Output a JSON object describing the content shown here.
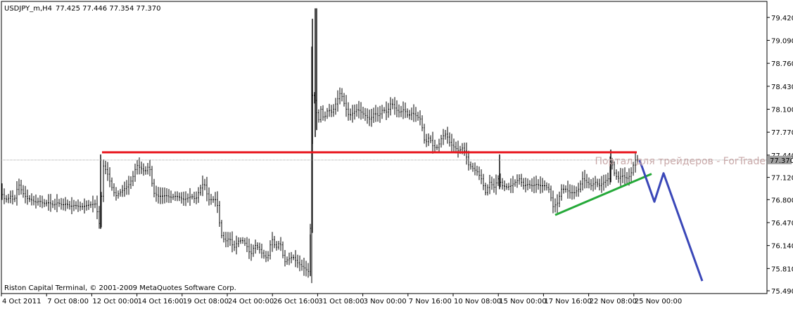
{
  "header": {
    "symbol_timeframe": "USDJPY_m,H4",
    "ohlc": "77.425 77.446 77.354 77.370"
  },
  "footer": {
    "copyright": "Riston Capital Terminal, © 2001-2009 MetaQuotes Software Corp."
  },
  "watermark": "Портал для трейдеров - ForTrade",
  "colors": {
    "background": "#ffffff",
    "candle": "#000000",
    "resistance": "#e8161e",
    "support": "#25a939",
    "forecast": "#3a47b8",
    "bid_line": "#a0a0a0"
  },
  "chart_data": {
    "type": "candlestick",
    "y_axis": {
      "ticks": [
        "79.420",
        "79.090",
        "78.760",
        "78.430",
        "78.100",
        "77.770",
        "77.440",
        "77.120",
        "76.800",
        "76.470",
        "76.140",
        "75.810",
        "75.490"
      ],
      "range": [
        75.45,
        79.65
      ]
    },
    "x_axis": {
      "ticks": [
        "4 Oct 2011",
        "7 Oct 08:00",
        "12 Oct 00:00",
        "14 Oct 16:00",
        "19 Oct 08:00",
        "24 Oct 00:00",
        "26 Oct 16:00",
        "31 Oct 08:00",
        "3 Nov 00:00",
        "7 Nov 16:00",
        "10 Nov 08:00",
        "15 Nov 00:00",
        "17 Nov 16:00",
        "22 Nov 08:00",
        "25 Nov 00:00"
      ]
    },
    "current_price": "77.370",
    "price_path": [
      [
        0,
        76.95
      ],
      [
        5,
        76.82
      ],
      [
        10,
        76.8
      ],
      [
        15,
        76.85
      ],
      [
        20,
        76.78
      ],
      [
        26,
        77.03
      ],
      [
        32,
        76.9
      ],
      [
        38,
        76.82
      ],
      [
        44,
        76.8
      ],
      [
        50,
        76.76
      ],
      [
        56,
        76.78
      ],
      [
        62,
        76.74
      ],
      [
        68,
        76.76
      ],
      [
        76,
        76.72
      ],
      [
        82,
        76.76
      ],
      [
        88,
        76.72
      ],
      [
        94,
        76.74
      ],
      [
        100,
        76.7
      ],
      [
        106,
        76.72
      ],
      [
        112,
        76.7
      ],
      [
        118,
        76.7
      ],
      [
        124,
        76.72
      ],
      [
        130,
        76.73
      ],
      [
        136,
        76.74
      ],
      [
        142,
        76.4
      ],
      [
        146,
        77.3
      ],
      [
        152,
        77.2
      ],
      [
        158,
        77.0
      ],
      [
        164,
        76.85
      ],
      [
        170,
        76.9
      ],
      [
        176,
        76.95
      ],
      [
        182,
        77.0
      ],
      [
        188,
        77.1
      ],
      [
        194,
        77.3
      ],
      [
        200,
        77.25
      ],
      [
        206,
        77.2
      ],
      [
        212,
        77.3
      ],
      [
        218,
        76.9
      ],
      [
        224,
        76.85
      ],
      [
        230,
        76.85
      ],
      [
        236,
        76.86
      ],
      [
        242,
        76.83
      ],
      [
        248,
        76.85
      ],
      [
        254,
        76.84
      ],
      [
        260,
        76.8
      ],
      [
        266,
        76.82
      ],
      [
        272,
        76.85
      ],
      [
        278,
        76.8
      ],
      [
        284,
        76.95
      ],
      [
        290,
        77.05
      ],
      [
        296,
        76.8
      ],
      [
        302,
        76.8
      ],
      [
        308,
        76.8
      ],
      [
        314,
        76.3
      ],
      [
        320,
        76.2
      ],
      [
        326,
        76.25
      ],
      [
        332,
        76.1
      ],
      [
        338,
        76.2
      ],
      [
        344,
        76.22
      ],
      [
        350,
        76.15
      ],
      [
        356,
        76.0
      ],
      [
        362,
        76.15
      ],
      [
        368,
        76.1
      ],
      [
        374,
        76.0
      ],
      [
        380,
        75.95
      ],
      [
        386,
        76.25
      ],
      [
        392,
        76.1
      ],
      [
        398,
        76.2
      ],
      [
        404,
        75.9
      ],
      [
        410,
        75.95
      ],
      [
        416,
        75.98
      ],
      [
        422,
        75.9
      ],
      [
        428,
        75.85
      ],
      [
        434,
        75.8
      ],
      [
        440,
        75.75
      ],
      [
        444,
        78.3
      ],
      [
        448,
        78.2
      ],
      [
        452,
        77.9
      ],
      [
        456,
        78.1
      ],
      [
        460,
        77.95
      ],
      [
        466,
        78.1
      ],
      [
        472,
        78.05
      ],
      [
        478,
        78.2
      ],
      [
        484,
        78.35
      ],
      [
        490,
        78.15
      ],
      [
        496,
        78.0
      ],
      [
        502,
        78.05
      ],
      [
        508,
        78.1
      ],
      [
        514,
        78.05
      ],
      [
        520,
        78.0
      ],
      [
        526,
        77.95
      ],
      [
        532,
        78.05
      ],
      [
        538,
        78.0
      ],
      [
        544,
        78.1
      ],
      [
        550,
        78.05
      ],
      [
        556,
        78.2
      ],
      [
        562,
        78.1
      ],
      [
        568,
        78.05
      ],
      [
        574,
        78.1
      ],
      [
        580,
        78.0
      ],
      [
        586,
        78.05
      ],
      [
        592,
        78.0
      ],
      [
        598,
        77.95
      ],
      [
        604,
        77.6
      ],
      [
        610,
        77.7
      ],
      [
        616,
        77.55
      ],
      [
        622,
        77.55
      ],
      [
        628,
        77.7
      ],
      [
        634,
        77.75
      ],
      [
        640,
        77.6
      ],
      [
        646,
        77.55
      ],
      [
        652,
        77.5
      ],
      [
        658,
        77.55
      ],
      [
        662,
        77.45
      ],
      [
        666,
        77.3
      ],
      [
        672,
        77.25
      ],
      [
        678,
        77.2
      ],
      [
        684,
        77.1
      ],
      [
        690,
        76.9
      ],
      [
        696,
        77.05
      ],
      [
        702,
        76.98
      ],
      [
        708,
        77.1
      ],
      [
        714,
        77.0
      ],
      [
        720,
        76.98
      ],
      [
        726,
        77.0
      ],
      [
        732,
        77.05
      ],
      [
        738,
        77.1
      ],
      [
        744,
        77.0
      ],
      [
        750,
        77.02
      ],
      [
        756,
        77.0
      ],
      [
        762,
        77.02
      ],
      [
        768,
        77.0
      ],
      [
        774,
        77.0
      ],
      [
        780,
        76.95
      ],
      [
        786,
        76.7
      ],
      [
        792,
        76.75
      ],
      [
        798,
        76.95
      ],
      [
        804,
        76.95
      ],
      [
        810,
        76.9
      ],
      [
        816,
        76.9
      ],
      [
        822,
        76.95
      ],
      [
        828,
        77.1
      ],
      [
        834,
        77.05
      ],
      [
        840,
        77.0
      ],
      [
        846,
        77.05
      ],
      [
        852,
        77.0
      ],
      [
        858,
        77.05
      ],
      [
        864,
        77.1
      ],
      [
        868,
        77.4
      ],
      [
        872,
        77.2
      ],
      [
        878,
        77.1
      ],
      [
        884,
        77.15
      ],
      [
        890,
        77.1
      ],
      [
        896,
        77.15
      ],
      [
        902,
        77.37
      ]
    ],
    "spike_bars": [
      [
        441,
        75.7,
        76.3
      ],
      [
        444,
        77.6,
        79.4
      ],
      [
        448,
        77.7,
        79.55
      ],
      [
        450,
        77.8,
        79.55
      ],
      [
        868,
        77.05,
        77.52
      ],
      [
        710,
        76.95,
        77.45
      ],
      [
        143,
        76.38,
        77.45
      ]
    ],
    "levels": {
      "resistance": {
        "from": [
          145,
          77.48
        ],
        "to": [
          905,
          77.48
        ]
      },
      "support": {
        "from": [
          789,
          76.58
        ],
        "to": [
          926,
          77.17
        ]
      },
      "forecast": [
        [
          909,
          77.37
        ],
        [
          930,
          76.77
        ],
        [
          943,
          77.18
        ],
        [
          998,
          75.63
        ]
      ]
    }
  }
}
